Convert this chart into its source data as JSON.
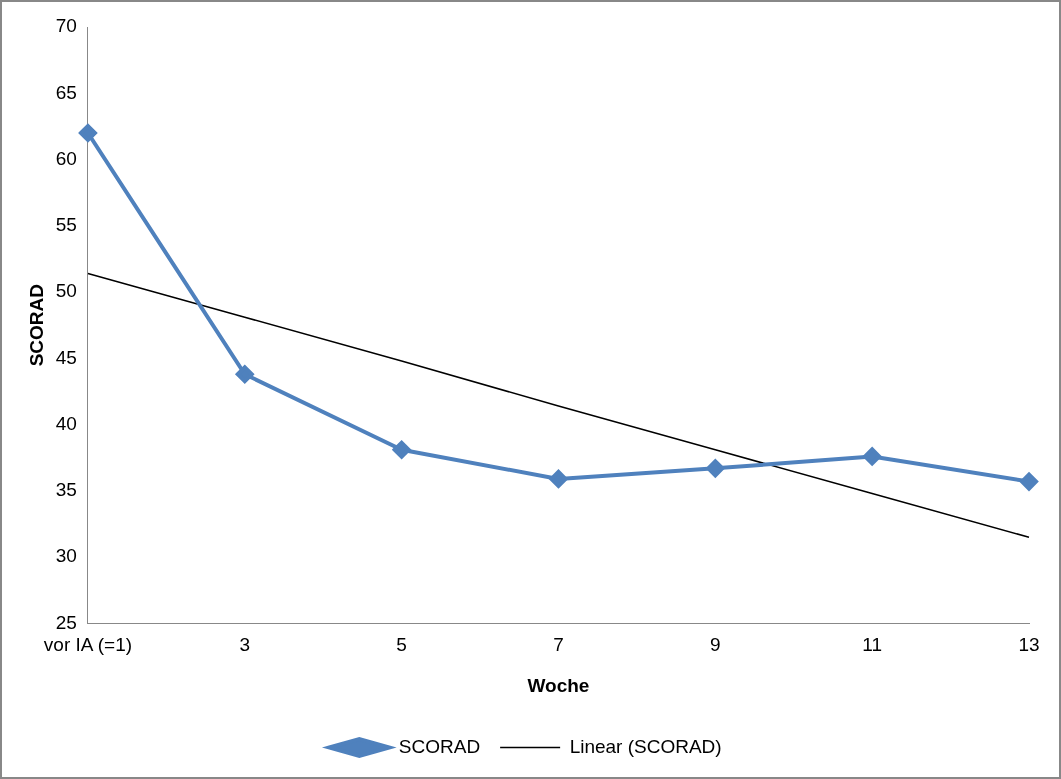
{
  "chart_data": {
    "type": "line",
    "xlabel": "Woche",
    "ylabel": "SCORAD",
    "categories": [
      "vor IA (=1)",
      "3",
      "5",
      "7",
      "9",
      "11",
      "13"
    ],
    "series": [
      {
        "name": "SCORAD",
        "color": "#4f81bd",
        "values": [
          62,
          43.8,
          38.1,
          35.9,
          36.7,
          37.6,
          35.7
        ],
        "marker": "diamond"
      },
      {
        "name": "Linear (SCORAD)",
        "color": "#000000",
        "values": [
          51.4,
          48.1,
          44.8,
          41.4,
          38.1,
          34.8,
          31.5
        ],
        "marker": "none"
      }
    ],
    "ylim": [
      25,
      70
    ],
    "yticks": [
      25,
      30,
      35,
      40,
      45,
      50,
      55,
      60,
      65,
      70
    ],
    "legend": "bottom"
  }
}
